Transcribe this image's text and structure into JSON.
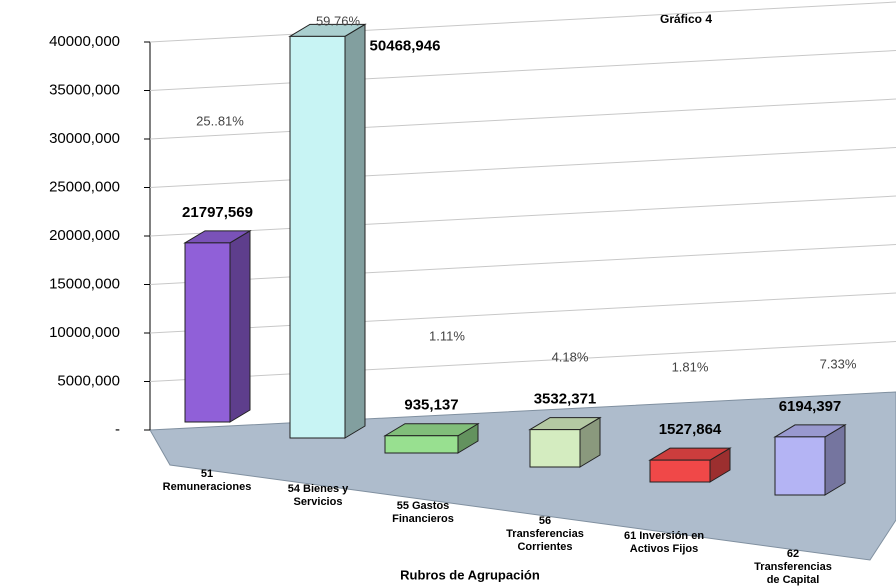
{
  "chart_data": {
    "type": "bar3d",
    "title": "Gráfico 4",
    "xlabel": "Rubros de Agrupación",
    "categories": [
      "51\nRemuneraciones",
      "54 Bienes y\nServicios",
      "55 Gastos\nFinancieros",
      "56\nTransferencias\nCorrientes",
      "61 Inversión en\nActivos Fijos",
      "62\nTransferencias\nde Capital"
    ],
    "values": [
      21797569,
      50468946,
      935137,
      3532371,
      1527864,
      6194397
    ],
    "value_labels": [
      "21797,569",
      "50468,946",
      "935,137",
      "3532,371",
      "1527,864",
      "6194,397"
    ],
    "percent_labels": [
      "25..81%",
      "59.76%",
      "1.11%",
      "4.18%",
      "1.81%",
      "7.33%"
    ],
    "colors": [
      "#9060d8",
      "#c8f4f4",
      "#98e090",
      "#d4ecc0",
      "#f04848",
      "#b4b4f4"
    ],
    "ylim": [
      0,
      40000000
    ],
    "yticks": [
      {
        "value": 0,
        "label": "-"
      },
      {
        "value": 5000000,
        "label": "5000,000"
      },
      {
        "value": 10000000,
        "label": "10000,000"
      },
      {
        "value": 15000000,
        "label": "15000,000"
      },
      {
        "value": 20000000,
        "label": "20000,000"
      },
      {
        "value": 25000000,
        "label": "25000,000"
      },
      {
        "value": 30000000,
        "label": "30000,000"
      },
      {
        "value": 35000000,
        "label": "35000,000"
      },
      {
        "value": 40000000,
        "label": "40000,000"
      }
    ],
    "grid": true
  }
}
